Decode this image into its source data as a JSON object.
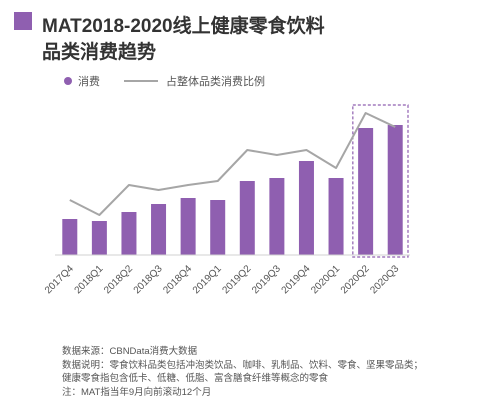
{
  "title_lines": [
    "MAT2018-2020线上健康零食饮料",
    "品类消费趋势"
  ],
  "colors": {
    "accent": "#8f5fb0",
    "line": "#a6a6a6",
    "highlight_border": "#8f5fb0",
    "text_dark": "#333333",
    "text_muted": "#555555"
  },
  "legend": {
    "bar_label": "消费",
    "line_label": "占整体品类消费比例"
  },
  "chart_data": {
    "type": "bar",
    "categories": [
      "2017Q4",
      "2018Q1",
      "2018Q2",
      "2018Q3",
      "2018Q4",
      "2019Q1",
      "2019Q2",
      "2019Q3",
      "2019Q4",
      "2020Q1",
      "2020Q2",
      "2020Q3"
    ],
    "series": [
      {
        "name": "消费",
        "type": "bar",
        "values": [
          36,
          34,
          43,
          51,
          57,
          55,
          74,
          77,
          94,
          77,
          127,
          130
        ]
      },
      {
        "name": "占整体品类消费比例",
        "type": "line",
        "values": [
          55,
          40,
          70,
          65,
          70,
          74,
          105,
          100,
          105,
          87,
          142,
          128
        ]
      }
    ],
    "ylim": [
      0,
      150
    ],
    "highlighted_categories": [
      "2020Q2",
      "2020Q3"
    ],
    "grid": false,
    "legend_position": "top-left"
  },
  "notes": [
    "数据来源：CBNData消费大数据",
    "数据说明：零食饮料品类包括冲泡类饮品、咖啡、乳制品、饮料、零食、坚果零品类；",
    "健康零食指包含低卡、低糖、低脂、富含膳食纤维等概念的零食",
    "注：MAT指当年9月向前滚动12个月"
  ]
}
